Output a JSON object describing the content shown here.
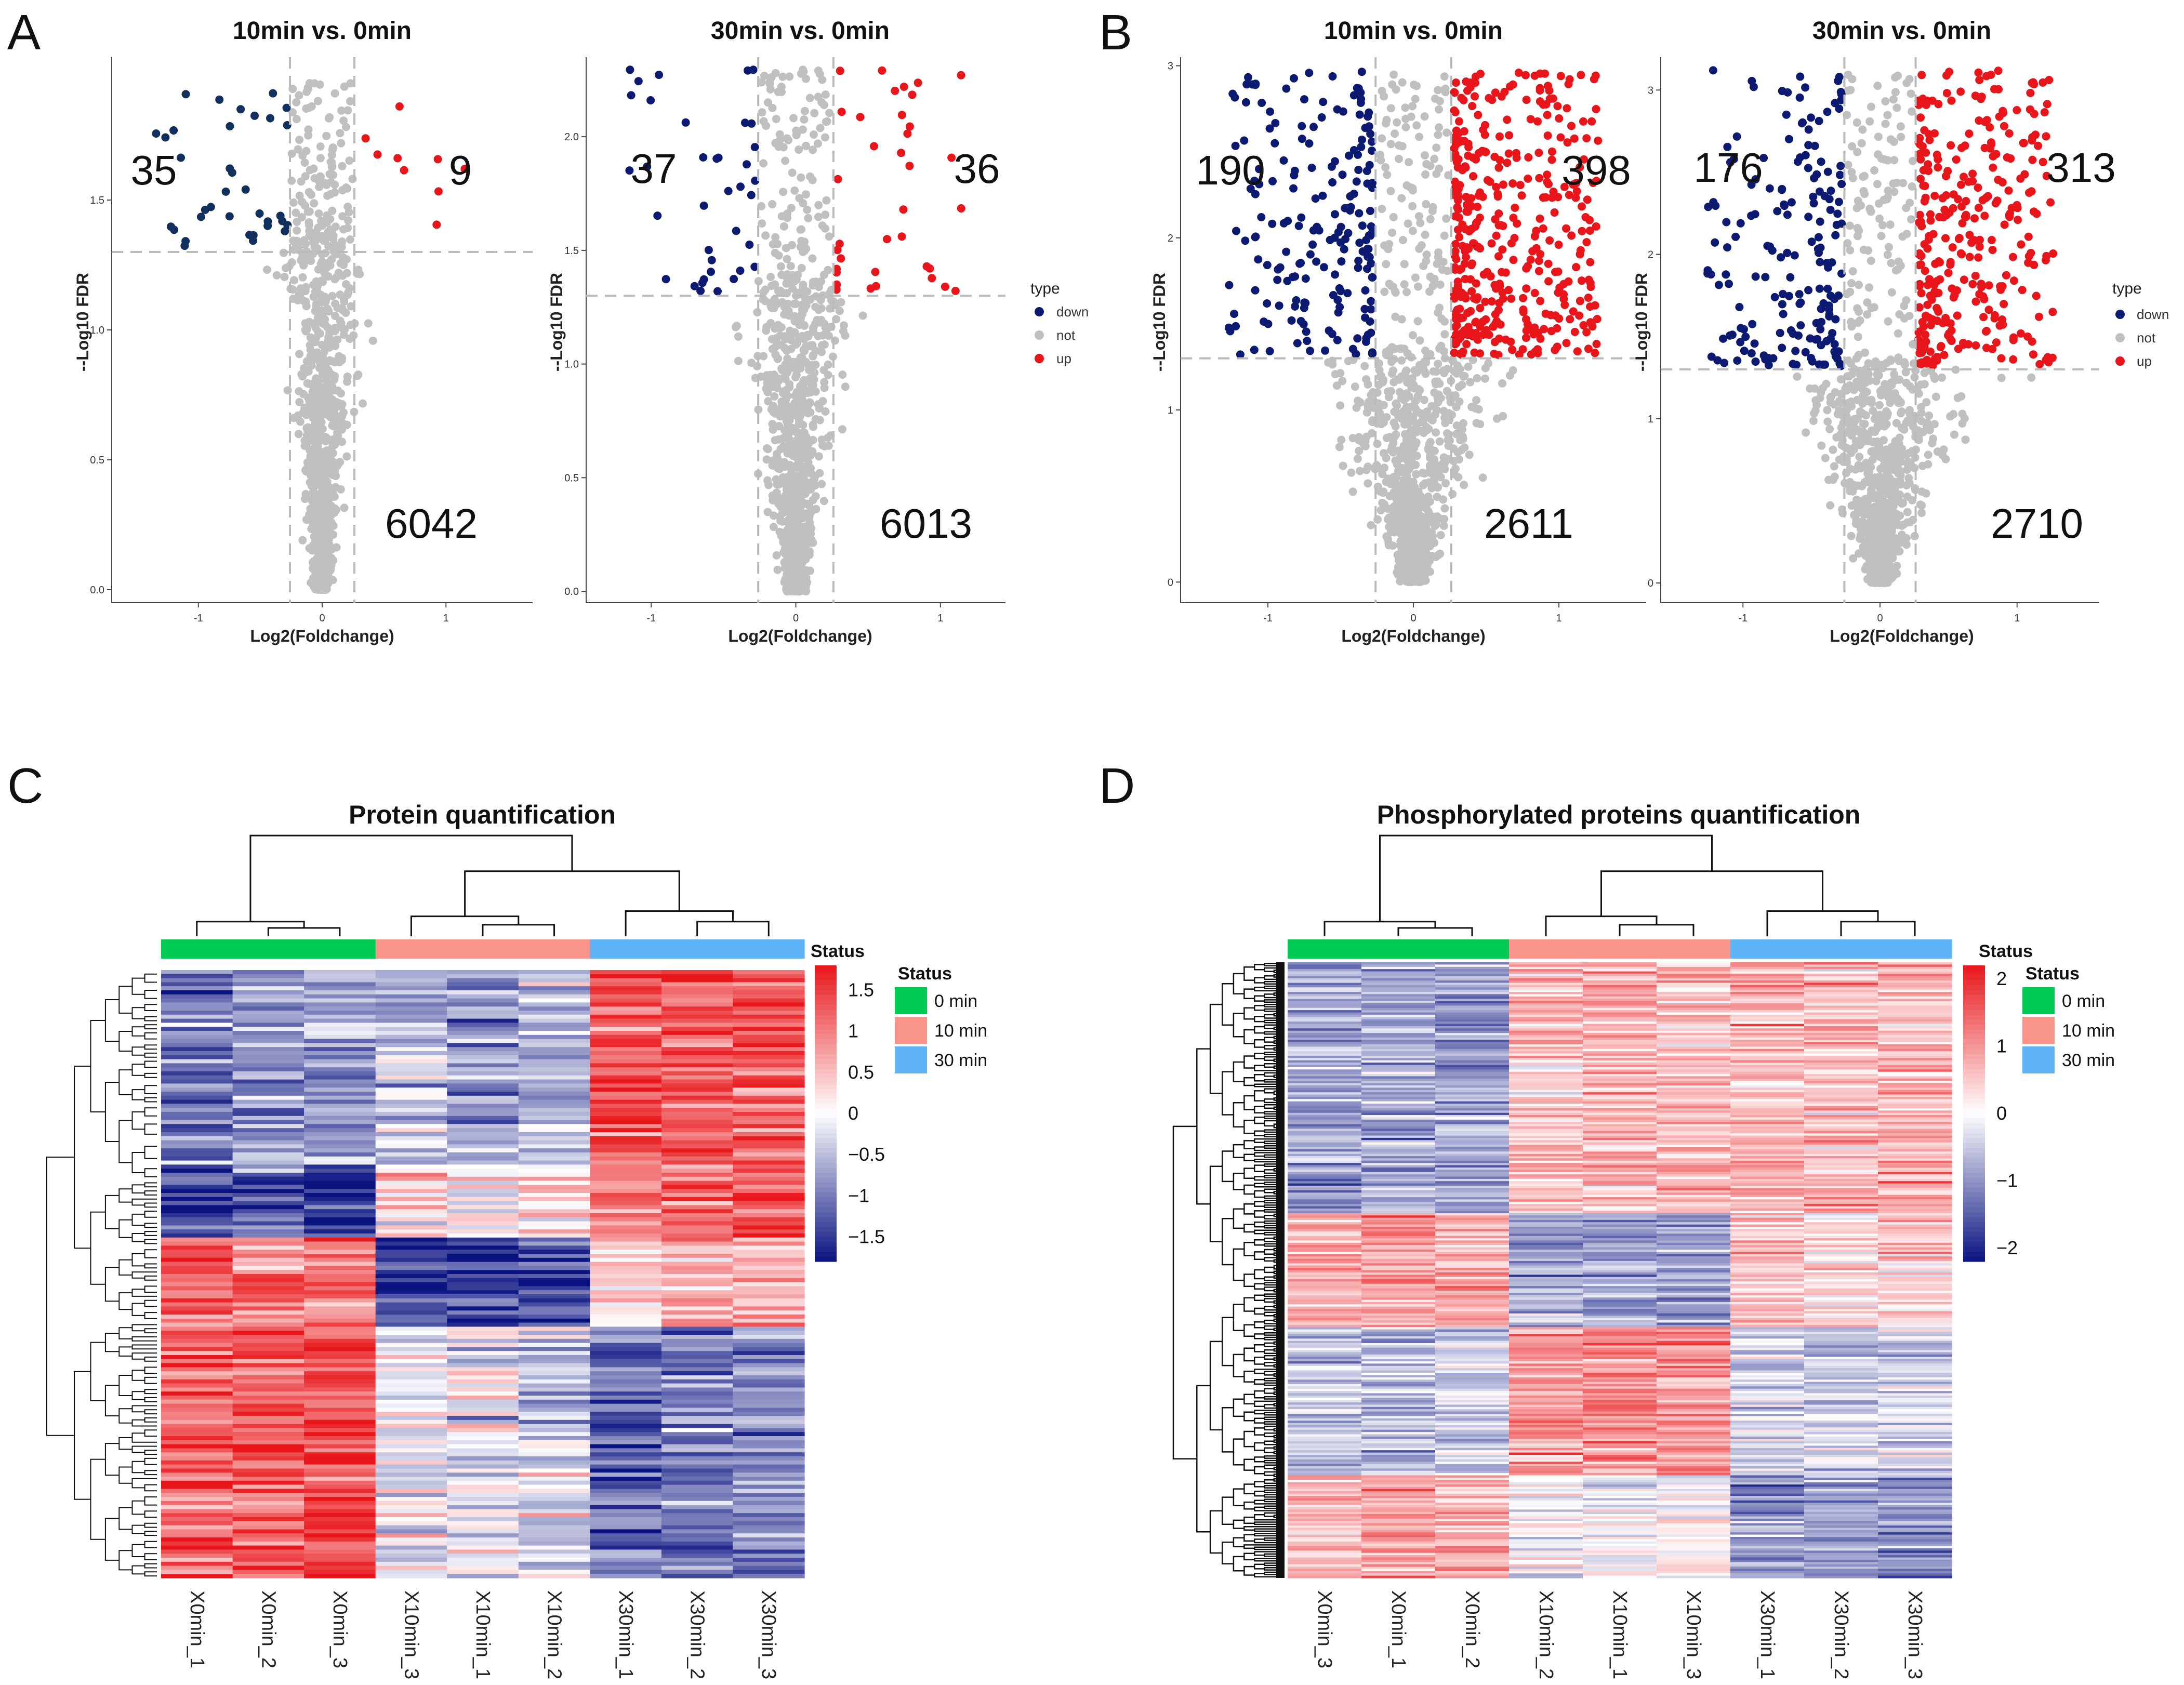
{
  "panels": {
    "A": {
      "letter": "A"
    },
    "B": {
      "letter": "B"
    },
    "C": {
      "letter": "C"
    },
    "D": {
      "letter": "D"
    }
  },
  "colors": {
    "down": "#0d1a72",
    "down_a": "#12305e",
    "not": "#c0c0c0",
    "up": "#e8161a",
    "dashed": "#bbbbbb",
    "heat_low": "#0a1380",
    "heat_mid": "#ffffff",
    "heat_high": "#e8161a",
    "status_0": "#00cc55",
    "status_10": "#f8948a",
    "status_30": "#5fb4f8"
  },
  "chart_data": [
    {
      "id": "A1",
      "type": "scatter",
      "panel": "A",
      "title": "10min vs. 0min",
      "xlabel": "Log2(Foldchange)",
      "ylabel": "--Log10 FDR",
      "xlim": [
        -1.7,
        1.7
      ],
      "ylim": [
        -0.05,
        2.05
      ],
      "xticks": [
        "-1",
        "0",
        "1"
      ],
      "xtick_values": [
        -1,
        0,
        1
      ],
      "yticks": [
        "0.0",
        "0.5",
        "1.0",
        "1.5"
      ],
      "ytick_values": [
        0,
        0.5,
        1.0,
        1.5
      ],
      "fc_threshold": 0.26,
      "fdr_threshold": 1.3,
      "counts": {
        "down": "35",
        "up": "9",
        "not": "6042"
      },
      "legend": null
    },
    {
      "id": "A2",
      "type": "scatter",
      "panel": "A",
      "title": "30min vs. 0min",
      "xlabel": "Log2(Foldchange)",
      "ylabel": "--Log10 FDR",
      "xlim": [
        -1.45,
        1.45
      ],
      "ylim": [
        -0.05,
        2.35
      ],
      "xticks": [
        "-1",
        "0",
        "1"
      ],
      "xtick_values": [
        -1,
        0,
        1
      ],
      "yticks": [
        "0.0",
        "0.5",
        "1.0",
        "1.5",
        "2.0"
      ],
      "ytick_values": [
        0,
        0.5,
        1.0,
        1.5,
        2.0
      ],
      "fc_threshold": 0.26,
      "fdr_threshold": 1.3,
      "counts": {
        "down": "37",
        "up": "36",
        "not": "6013"
      },
      "legend": {
        "title": "type",
        "items": [
          "down",
          "not",
          "up"
        ]
      }
    },
    {
      "id": "B1",
      "type": "scatter",
      "panel": "B",
      "title": "10min vs. 0min",
      "xlabel": "Log2(Foldchange)",
      "ylabel": "--Log10 FDR",
      "xlim": [
        -1.6,
        1.6
      ],
      "ylim": [
        -0.12,
        3.05
      ],
      "xticks": [
        "-1",
        "0",
        "1"
      ],
      "xtick_values": [
        -1,
        0,
        1
      ],
      "yticks": [
        "0",
        "1",
        "2",
        "3"
      ],
      "ytick_values": [
        0,
        1,
        2,
        3
      ],
      "fc_threshold": 0.26,
      "fdr_threshold": 1.3,
      "counts": {
        "down": "190",
        "up": "398",
        "not": "2611"
      },
      "legend": null
    },
    {
      "id": "B2",
      "type": "scatter",
      "panel": "B",
      "title": "30min vs. 0min",
      "xlabel": "Log2(Foldchange)",
      "ylabel": "--Log10 FDR",
      "xlim": [
        -1.6,
        1.6
      ],
      "ylim": [
        -0.12,
        3.2
      ],
      "xticks": [
        "-1",
        "0",
        "1"
      ],
      "xtick_values": [
        -1,
        0,
        1
      ],
      "yticks": [
        "0",
        "1",
        "2",
        "3"
      ],
      "ytick_values": [
        0,
        1,
        2,
        3
      ],
      "fc_threshold": 0.26,
      "fdr_threshold": 1.3,
      "counts": {
        "down": "176",
        "up": "313",
        "not": "2710"
      },
      "legend": {
        "title": "type",
        "items": [
          "down",
          "not",
          "up"
        ]
      }
    },
    {
      "id": "C",
      "type": "heatmap",
      "panel": "C",
      "title": "Protein quantification",
      "columns": [
        "X0min_1",
        "X0min_2",
        "X0min_3",
        "X10min_3",
        "X10min_1",
        "X10min_2",
        "X30min_1",
        "X30min_2",
        "X30min_3"
      ],
      "status": [
        "0 min",
        "0 min",
        "0 min",
        "10 min",
        "10 min",
        "10 min",
        "30 min",
        "30 min",
        "30 min"
      ],
      "status_title": "Status",
      "status_levels": [
        "0 min",
        "10 min",
        "30 min"
      ],
      "scale_title": "Status",
      "scale_ticks": [
        "1.5",
        "1",
        "0.5",
        "0",
        "−0.5",
        "−1",
        "−1.5"
      ],
      "scale_values": [
        1.5,
        1,
        0.5,
        0,
        -0.5,
        -1,
        -1.5
      ],
      "scale_range": [
        -1.8,
        1.8
      ],
      "row_blocks": [
        {
          "rows": 48,
          "values": [
            -1.0,
            -0.8,
            -0.7,
            -0.6,
            -0.8,
            -0.5,
            1.3,
            1.2,
            1.3
          ]
        },
        {
          "rows": 18,
          "values": [
            -1.4,
            -1.3,
            -1.4,
            0.2,
            0.1,
            0.3,
            1.0,
            1.2,
            1.4
          ]
        },
        {
          "rows": 22,
          "values": [
            1.2,
            1.0,
            1.1,
            -1.5,
            -1.5,
            -1.4,
            0.4,
            0.6,
            0.5
          ]
        },
        {
          "rows": 62,
          "values": [
            1.2,
            1.3,
            1.4,
            -0.2,
            -0.1,
            -0.3,
            -1.2,
            -1.0,
            -0.9
          ]
        }
      ]
    },
    {
      "id": "D",
      "type": "heatmap",
      "panel": "D",
      "title": "Phosphorylated proteins quantification",
      "columns": [
        "X0min_3",
        "X0min_1",
        "X0min_2",
        "X10min_2",
        "X10min_1",
        "X10min_3",
        "X30min_1",
        "X30min_2",
        "X30min_3"
      ],
      "status": [
        "0 min",
        "0 min",
        "0 min",
        "10 min",
        "10 min",
        "10 min",
        "30 min",
        "30 min",
        "30 min"
      ],
      "status_title": "Status",
      "status_levels": [
        "0 min",
        "10 min",
        "30 min"
      ],
      "scale_title": "Status",
      "scale_ticks": [
        "2",
        "1",
        "0",
        "−1",
        "−2"
      ],
      "scale_values": [
        2,
        1,
        0,
        -1,
        -2
      ],
      "scale_range": [
        -2.2,
        2.2
      ],
      "row_blocks": [
        {
          "rows": 110,
          "values": [
            -0.9,
            -0.8,
            -0.9,
            0.6,
            0.7,
            0.6,
            0.7,
            0.6,
            0.7
          ]
        },
        {
          "rows": 50,
          "values": [
            0.8,
            0.9,
            0.8,
            -0.9,
            -0.8,
            -0.9,
            0.6,
            0.3,
            0.5
          ]
        },
        {
          "rows": 65,
          "values": [
            -0.5,
            -0.6,
            -0.5,
            0.9,
            1.0,
            0.9,
            -0.3,
            -0.4,
            -0.3
          ]
        },
        {
          "rows": 45,
          "values": [
            0.7,
            0.8,
            0.7,
            0.0,
            -0.1,
            0.1,
            -1.0,
            -0.9,
            -1.0
          ]
        }
      ]
    }
  ]
}
